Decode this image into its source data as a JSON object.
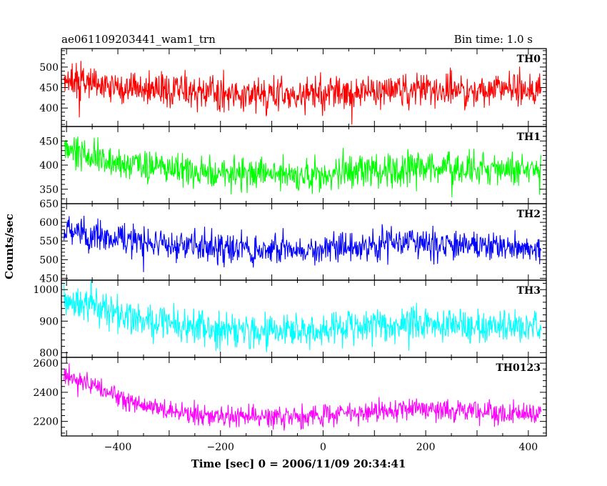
{
  "header": {
    "left_title": "ae061109203441_wam1_trn",
    "right_title": "Bin time: 1.0 s"
  },
  "chart_data": {
    "type": "line",
    "xlabel": "Time [sec] 0 = 2006/11/09 20:34:41",
    "ylabel": "Counts/sec",
    "xlim": [
      -510,
      435
    ],
    "x_ticks": [
      -400,
      -200,
      0,
      200,
      400
    ],
    "x_tick_labels": [
      "−400",
      "−200",
      "0",
      "200",
      "400"
    ],
    "x_data_range": [
      -505,
      425
    ],
    "bin_time_s": 1.0,
    "panels": [
      {
        "name": "TH0",
        "color": "#ff0000",
        "ylim": [
          355,
          545
        ],
        "yticks": [
          400,
          450,
          500
        ],
        "trend": {
          "x": [
            -505,
            -450,
            -400,
            -300,
            -200,
            -100,
            0,
            100,
            200,
            300,
            425
          ],
          "y": [
            470,
            462,
            452,
            438,
            433,
            432,
            435,
            440,
            442,
            443,
            442
          ]
        },
        "noise_amplitude": 30
      },
      {
        "name": "TH1",
        "color": "#00ff00",
        "ylim": [
          320,
          480
        ],
        "yticks": [
          350,
          400,
          450
        ],
        "trend": {
          "x": [
            -505,
            -450,
            -400,
            -300,
            -200,
            -100,
            0,
            100,
            200,
            300,
            425
          ],
          "y": [
            428,
            418,
            405,
            392,
            382,
            380,
            383,
            390,
            395,
            392,
            390
          ]
        },
        "noise_amplitude": 25
      },
      {
        "name": "TH2",
        "color": "#0000ff",
        "ylim": [
          445,
          650
        ],
        "yticks": [
          450,
          500,
          550,
          600,
          650
        ],
        "trend": {
          "x": [
            -505,
            -450,
            -400,
            -300,
            -200,
            -100,
            0,
            100,
            200,
            300,
            425
          ],
          "y": [
            578,
            568,
            555,
            540,
            530,
            525,
            528,
            540,
            545,
            538,
            532
          ]
        },
        "noise_amplitude": 30
      },
      {
        "name": "TH3",
        "color": "#00ffff",
        "ylim": [
          785,
          1030
        ],
        "yticks": [
          800,
          900,
          1000
        ],
        "trend": {
          "x": [
            -505,
            -450,
            -400,
            -300,
            -200,
            -100,
            0,
            100,
            200,
            300,
            425
          ],
          "y": [
            965,
            945,
            915,
            890,
            872,
            868,
            872,
            885,
            892,
            885,
            878
          ]
        },
        "noise_amplitude": 38
      },
      {
        "name": "TH0123",
        "color": "#ff00ff",
        "ylim": [
          2100,
          2640
        ],
        "yticks": [
          2200,
          2400,
          2600
        ],
        "trend": {
          "x": [
            -505,
            -450,
            -400,
            -300,
            -200,
            -100,
            0,
            100,
            200,
            300,
            425
          ],
          "y": [
            2520,
            2450,
            2360,
            2280,
            2240,
            2230,
            2240,
            2270,
            2290,
            2260,
            2240
          ]
        },
        "noise_amplitude": 55
      }
    ]
  }
}
